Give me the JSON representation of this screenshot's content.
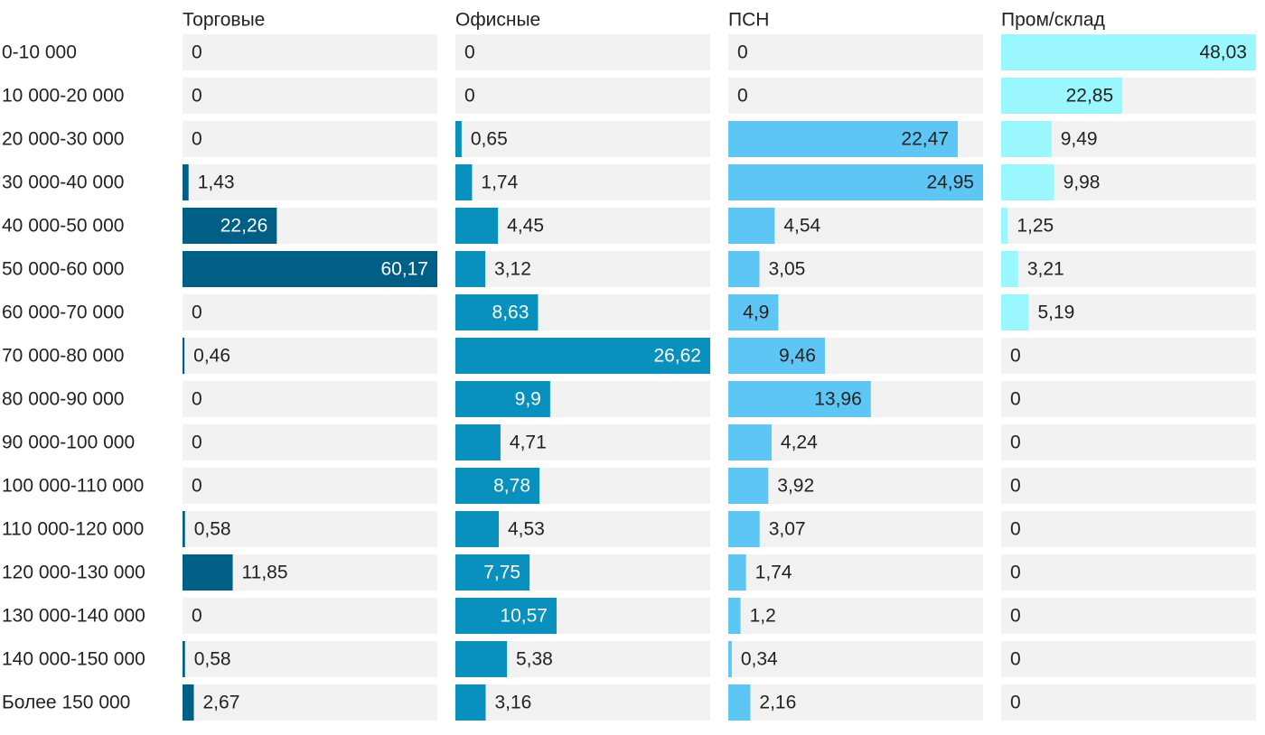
{
  "chart_data": {
    "type": "bar",
    "orientation": "horizontal",
    "layout": "small-multiples",
    "categories": [
      "0-10 000",
      "10 000-20 000",
      "20 000-30 000",
      "30 000-40 000",
      "40 000-50 000",
      "50 000-60 000",
      "60 000-70 000",
      "70 000-80 000",
      "80 000-90 000",
      "90 000-100 000",
      "100 000-110 000",
      "110 000-120 000",
      "120 000-130 000",
      "130 000-140 000",
      "140 000-150 000",
      "Более 150 000"
    ],
    "series": [
      {
        "name": "Торговые",
        "color": "#005f87",
        "max": 60.17,
        "values": [
          0,
          0,
          0,
          1.43,
          22.26,
          60.17,
          0,
          0.46,
          0,
          0,
          0,
          0.58,
          11.85,
          0,
          0.58,
          2.67
        ]
      },
      {
        "name": "Офисные",
        "color": "#0891be",
        "max": 26.62,
        "values": [
          0,
          0,
          0.65,
          1.74,
          4.45,
          3.12,
          8.63,
          26.62,
          9.9,
          4.71,
          8.78,
          4.53,
          7.75,
          10.57,
          5.38,
          3.16
        ]
      },
      {
        "name": "ПСН",
        "color": "#5ec6f4",
        "max": 24.95,
        "values": [
          0,
          0,
          22.47,
          24.95,
          4.54,
          3.05,
          4.9,
          9.46,
          13.96,
          4.24,
          3.92,
          3.07,
          1.74,
          1.2,
          0.34,
          2.16
        ]
      },
      {
        "name": "Пром/склад",
        "color": "#9af7fd",
        "max": 48.03,
        "values": [
          48.03,
          22.85,
          9.49,
          9.98,
          1.25,
          3.21,
          5.19,
          0,
          0,
          0,
          0,
          0,
          0,
          0,
          0,
          0
        ]
      }
    ],
    "track_color": "#f2f2f2",
    "decimal_separator": ","
  }
}
